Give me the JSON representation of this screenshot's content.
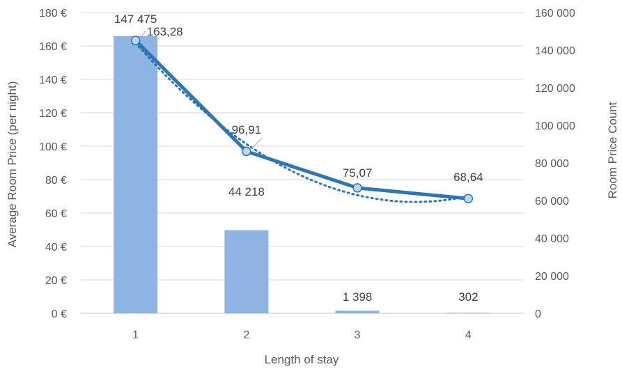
{
  "chart_data": {
    "type": "bar+line",
    "categories": [
      "1",
      "2",
      "3",
      "4"
    ],
    "xlabel": "Length of stay",
    "ylabel_left": "Average Room Price (per night)",
    "ylabel_right": "Room Price Count",
    "ylim_left": [
      0,
      180
    ],
    "ylim_right": [
      0,
      160000
    ],
    "left_ticks": [
      "0 €",
      "20 €",
      "40 €",
      "60 €",
      "80 €",
      "100 €",
      "120 €",
      "140 €",
      "160 €",
      "180 €"
    ],
    "right_ticks": [
      "0",
      "20 000",
      "40 000",
      "60 000",
      "80 000",
      "100 000",
      "120 000",
      "140 000",
      "160 000"
    ],
    "grid": true,
    "bars": {
      "axis": "right",
      "values": [
        147475,
        44218,
        1398,
        302
      ],
      "labels": [
        "147 475",
        "44 218",
        "1 398",
        "302"
      ],
      "color": "#8EB4E3"
    },
    "line": {
      "axis": "left",
      "values": [
        163.28,
        96.91,
        75.07,
        68.64
      ],
      "labels": [
        "163,28",
        "96,91",
        "75,07",
        "68,64"
      ],
      "color": "#2E75B6",
      "marker_fill": "#BDD7EE"
    },
    "trendline": {
      "axis": "left",
      "style": "dotted",
      "type": "polynomial",
      "color": "#2E75B6"
    }
  }
}
